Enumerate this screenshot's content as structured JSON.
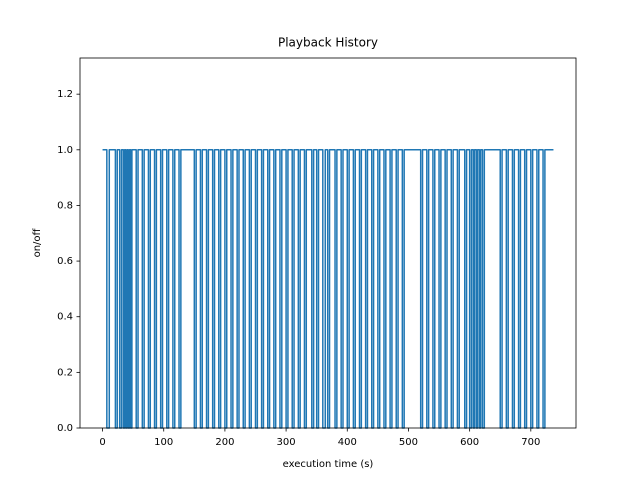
{
  "chart_data": {
    "type": "line",
    "title": "Playback History",
    "x_label": "execution time (s)",
    "y_label": "on/off",
    "color": "#1f77b4",
    "xlim": [
      -36.85,
      773.85
    ],
    "ylim": [
      0,
      1.33
    ],
    "xticks": [
      0,
      100,
      200,
      300,
      400,
      500,
      600,
      700
    ],
    "yticks": [
      {
        "value": 0,
        "label": "0.0"
      },
      {
        "value": 0.2,
        "label": "0.2"
      },
      {
        "value": 0.4,
        "label": "0.4"
      },
      {
        "value": 0.6,
        "label": "0.6"
      },
      {
        "value": 0.8,
        "label": "0.8"
      },
      {
        "value": 1,
        "label": "1.0"
      },
      {
        "value": 1.2,
        "label": "1.2"
      }
    ],
    "x": [
      0,
      7,
      7,
      11,
      11,
      21,
      21,
      24,
      24,
      28,
      28,
      31,
      31,
      34,
      34,
      36,
      36,
      38,
      38,
      40,
      40,
      42,
      42,
      44,
      44,
      46,
      46,
      48,
      48,
      55,
      55,
      58,
      58,
      65,
      65,
      68,
      68,
      75,
      75,
      78,
      78,
      85,
      85,
      88,
      88,
      95,
      95,
      98,
      98,
      105,
      105,
      108,
      108,
      115,
      115,
      118,
      118,
      125,
      125,
      128,
      128,
      150,
      150,
      153,
      153,
      160,
      160,
      163,
      163,
      170,
      170,
      173,
      173,
      180,
      180,
      183,
      183,
      190,
      190,
      193,
      193,
      200,
      200,
      203,
      203,
      210,
      210,
      213,
      213,
      220,
      220,
      223,
      223,
      230,
      230,
      233,
      233,
      240,
      240,
      243,
      243,
      250,
      250,
      253,
      253,
      260,
      260,
      263,
      263,
      270,
      270,
      273,
      273,
      280,
      280,
      283,
      283,
      290,
      290,
      293,
      293,
      300,
      300,
      303,
      303,
      310,
      310,
      313,
      313,
      320,
      320,
      323,
      323,
      330,
      330,
      333,
      333,
      342,
      342,
      345,
      345,
      350,
      350,
      353,
      353,
      360,
      360,
      364,
      364,
      368,
      368,
      371,
      371,
      380,
      380,
      383,
      383,
      390,
      390,
      393,
      393,
      400,
      400,
      403,
      403,
      410,
      410,
      413,
      413,
      420,
      420,
      423,
      423,
      430,
      430,
      433,
      433,
      440,
      440,
      443,
      443,
      450,
      450,
      453,
      453,
      460,
      460,
      463,
      463,
      470,
      470,
      473,
      473,
      480,
      480,
      483,
      483,
      490,
      490,
      493,
      493,
      520,
      520,
      523,
      523,
      530,
      530,
      533,
      533,
      540,
      540,
      543,
      543,
      550,
      550,
      553,
      553,
      560,
      560,
      563,
      563,
      570,
      570,
      573,
      573,
      580,
      580,
      583,
      583,
      592,
      592,
      595,
      595,
      600,
      600,
      603,
      603,
      606,
      606,
      608,
      608,
      611,
      611,
      613,
      613,
      616,
      616,
      618,
      618,
      621,
      621,
      624,
      624,
      650,
      650,
      653,
      653,
      660,
      660,
      663,
      663,
      670,
      670,
      673,
      673,
      680,
      680,
      683,
      683,
      690,
      690,
      693,
      693,
      700,
      700,
      703,
      703,
      710,
      710,
      713,
      713,
      720,
      720,
      723,
      723,
      737
    ],
    "values": [
      1,
      1,
      0,
      0,
      1,
      1,
      0,
      0,
      1,
      1,
      0,
      0,
      1,
      1,
      0,
      0,
      1,
      1,
      0,
      0,
      1,
      1,
      0,
      0,
      1,
      1,
      0,
      0,
      1,
      1,
      0,
      0,
      1,
      1,
      0,
      0,
      1,
      1,
      0,
      0,
      1,
      1,
      0,
      0,
      1,
      1,
      0,
      0,
      1,
      1,
      0,
      0,
      1,
      1,
      0,
      0,
      1,
      1,
      0,
      0,
      1,
      1,
      0,
      0,
      1,
      1,
      0,
      0,
      1,
      1,
      0,
      0,
      1,
      1,
      0,
      0,
      1,
      1,
      0,
      0,
      1,
      1,
      0,
      0,
      1,
      1,
      0,
      0,
      1,
      1,
      0,
      0,
      1,
      1,
      0,
      0,
      1,
      1,
      0,
      0,
      1,
      1,
      0,
      0,
      1,
      1,
      0,
      0,
      1,
      1,
      0,
      0,
      1,
      1,
      0,
      0,
      1,
      1,
      0,
      0,
      1,
      1,
      0,
      0,
      1,
      1,
      0,
      0,
      1,
      1,
      0,
      0,
      1,
      1,
      0,
      0,
      1,
      1,
      0,
      0,
      1,
      1,
      0,
      0,
      1,
      1,
      0,
      0,
      1,
      1,
      0,
      0,
      1,
      1,
      0,
      0,
      1,
      1,
      0,
      0,
      1,
      1,
      0,
      0,
      1,
      1,
      0,
      0,
      1,
      1,
      0,
      0,
      1,
      1,
      0,
      0,
      1,
      1,
      0,
      0,
      1,
      1,
      0,
      0,
      1,
      1,
      0,
      0,
      1,
      1,
      0,
      0,
      1,
      1,
      0,
      0,
      1,
      1,
      0,
      0,
      1,
      1,
      0,
      0,
      1,
      1,
      0,
      0,
      1,
      1,
      0,
      0,
      1,
      1,
      0,
      0,
      1,
      1,
      0,
      0,
      1,
      1,
      0,
      0,
      1,
      1,
      0,
      0,
      1,
      1,
      0,
      0,
      1,
      1,
      0,
      0,
      1,
      1,
      0,
      0,
      1,
      1,
      0,
      0,
      1,
      1,
      0,
      0,
      1,
      1,
      0,
      0,
      1,
      1,
      0,
      0,
      1,
      1,
      0,
      0,
      1,
      1,
      0,
      0,
      1,
      1,
      0,
      0,
      1,
      1,
      0,
      0,
      1,
      1,
      0,
      0,
      1,
      1,
      0,
      0,
      1,
      1,
      0,
      0,
      1,
      1
    ]
  }
}
